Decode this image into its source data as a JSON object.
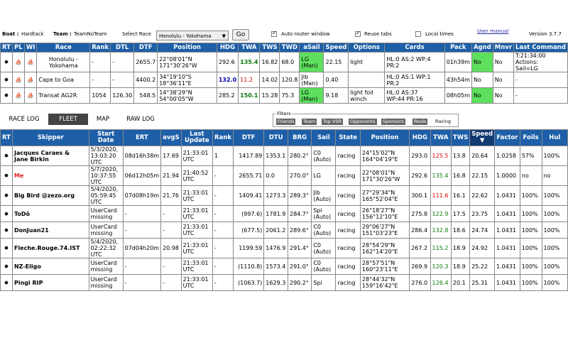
{
  "header": {
    "boat_label": "Boat :",
    "boat": "Hardtack",
    "team_label": "Team :",
    "team": "TeamNoTeam",
    "select_race_label": "Select Race",
    "selected_race": "Honolulu - Yokohama",
    "go_label": "Go",
    "auto_router_label": "Auto router window",
    "reuse_tabs_label": "Reuse tabs",
    "local_times_label": "Local times",
    "user_manual_label": "User manual",
    "version": "Version 3.7.7"
  },
  "race_table": {
    "headers": [
      "RT",
      "PL",
      "WI",
      "Race",
      "Rank",
      "DTL",
      "DTF",
      "Position",
      "HDG",
      "TWA",
      "TWS",
      "TWD",
      "aSail",
      "Speed",
      "Options",
      "Cards",
      "Pack",
      "Agnd",
      "Mnvr",
      "Last Command"
    ],
    "rows": [
      {
        "race_l1": "Honolulu -",
        "race_l2": "Yokohama",
        "rank": "-",
        "dtl": "-",
        "dtf": "2655.7",
        "pos1": "22°08'01\"N",
        "pos2": "171°30'26\"W",
        "hdg": "292.6",
        "twa": "135.4",
        "tws": "16.82",
        "twd": "68.0",
        "sail1": "LG",
        "sail2": "(Man)",
        "speed": "22.15",
        "options": "light",
        "cards1": "HL:0 AS:2 WP:4",
        "cards2": "PR:2",
        "pack": "01h39m",
        "agnd": "No",
        "mnvr": "No",
        "cmd1": "T:21:34:00",
        "cmd2": "Actions:",
        "cmd3": "Sail=LG"
      },
      {
        "race_l1": "Cape to Goa",
        "race_l2": "",
        "rank": "-",
        "dtl": "-",
        "dtf": "4400.2",
        "pos1": "34°19'10\"S",
        "pos2": "18°36'11\"E",
        "hdg": "132.0",
        "twa": "11.2",
        "tws": "14.02",
        "twd": "120.8",
        "sail1": "Jib",
        "sail2": "(Man)",
        "speed": "0.40",
        "options": "",
        "cards1": "HL:0 AS:1 WP:1",
        "cards2": "PR:2",
        "pack": "43h54m",
        "agnd": "No",
        "mnvr": "No",
        "cmd1": "-",
        "cmd2": "",
        "cmd3": ""
      },
      {
        "race_l1": "Transat AG2R",
        "race_l2": "",
        "rank": "1054",
        "dtl": "126.30",
        "dtf": "548.5",
        "pos1": "14°38'29\"N",
        "pos2": "54°00'05\"W",
        "hdg": "285.2",
        "twa": "150.1",
        "tws": "15.28",
        "twd": "75.3",
        "sail1": "LG",
        "sail2": "(Man)",
        "speed": "9.18",
        "options": "light foil",
        "options2": "winch",
        "cards1": "HL:0 AS:37",
        "cards2": "WP:44 PR:16",
        "pack": "08h05m",
        "agnd": "No",
        "mnvr": "No",
        "cmd1": "-",
        "cmd2": "",
        "cmd3": ""
      }
    ]
  },
  "tabs": [
    "RACE LOG",
    "FLEET",
    "MAP",
    "RAW LOG"
  ],
  "filters": {
    "label": "Filters",
    "items": [
      "Friends",
      "Team",
      "Top VSR",
      "Opponents",
      "Sponsors",
      "Reals",
      "Racing"
    ]
  },
  "fleet_table": {
    "headers": [
      "RT",
      "Skipper",
      "Start Date",
      "ERT",
      "avgS",
      "Last Update",
      "Rank",
      "DTF",
      "DTU",
      "BRG",
      "Sail",
      "State",
      "Position",
      "HDG",
      "TWA",
      "TWS",
      "Speed ▼",
      "Factor",
      "Foils",
      "Hul"
    ],
    "rows": [
      {
        "skipper": "Jacques Caraes &",
        "skipper2": "Jane Birkin",
        "sd1": "5/3/2020,",
        "sd2": "13:03:20",
        "sd3": "UTC",
        "ert": "08d16h38m",
        "avgs": "17.69",
        "lu1": "21:33:01",
        "lu2": "UTC",
        "rank": "1",
        "dtf": "1417.89",
        "dtu": "1353.1",
        "brg": "280.2°",
        "sail1": "C0",
        "sail2": "(Auto)",
        "state": "racing",
        "p1": "24°15'02\"N",
        "p2": "164°04'19\"E",
        "hdg": "293.0",
        "twa": "125.5",
        "twa_col": "red",
        "tws": "13.8",
        "speed": "20.64",
        "factor": "1.0258",
        "foils": "57%",
        "hul": "100%"
      },
      {
        "skipper": "Me",
        "skipper2": "",
        "sd1": "5/7/2020,",
        "sd2": "10:37:55",
        "sd3": "UTC",
        "ert": "06d12h05m",
        "avgs": "21.94",
        "lu1": "21:40:52",
        "lu2": "UTC",
        "rank": "-",
        "dtf": "2655.71",
        "dtu": "0.0",
        "brg": "270.0°",
        "sail1": "LG",
        "sail2": "",
        "state": "racing",
        "p1": "22°08'01\"N",
        "p2": "171°30'26\"W",
        "hdg": "292.6",
        "twa": "135.4",
        "twa_col": "green",
        "tws": "16.8",
        "speed": "22.15",
        "factor": "1.0000",
        "foils": "no",
        "hul": "no"
      },
      {
        "skipper": "Big Bird @zezo.org",
        "skipper2": "",
        "sd1": "5/4/2020,",
        "sd2": "05:59:45",
        "sd3": "UTC",
        "ert": "07d08h19m",
        "avgs": "21.76",
        "lu1": "21:33:01",
        "lu2": "UTC",
        "rank": "-",
        "dtf": "1409.41",
        "dtu": "1273.3",
        "brg": "289.3°",
        "sail1": "Jib",
        "sail2": "(Auto)",
        "state": "racing",
        "p1": "27°29'34\"N",
        "p2": "165°52'04\"E",
        "hdg": "300.1",
        "twa": "111.6",
        "twa_col": "red",
        "tws": "16.1",
        "speed": "22.62",
        "factor": "1.0431",
        "foils": "100%",
        "hul": "100%"
      },
      {
        "skipper": "ToDô",
        "skipper2": "",
        "sd1": "UserCard",
        "sd2": "missing",
        "sd3": "",
        "ert": "-",
        "avgs": "-",
        "lu1": "21:33:01",
        "lu2": "UTC",
        "rank": "-",
        "dtf": "(997.6)",
        "dtu": "1781.9",
        "brg": "284.7°",
        "sail1": "Spi",
        "sail2": "(Auto)",
        "state": "racing",
        "p1": "26°18'27\"N",
        "p2": "156°12'10\"E",
        "hdg": "275.8",
        "twa": "122.9",
        "twa_col": "green",
        "tws": "17.5",
        "speed": "23.75",
        "factor": "1.0431",
        "foils": "100%",
        "hul": "100%"
      },
      {
        "skipper": "DonJuan21",
        "skipper2": "",
        "sd1": "UserCard",
        "sd2": "missing",
        "sd3": "",
        "ert": "-",
        "avgs": "-",
        "lu1": "21:33:01",
        "lu2": "UTC",
        "rank": "-",
        "dtf": "(677.5)",
        "dtu": "2061.2",
        "brg": "289.6°",
        "sail1": "C0",
        "sail2": "(Auto)",
        "state": "racing",
        "p1": "29°06'27\"N",
        "p2": "151°03'23\"E",
        "hdg": "286.4",
        "twa": "132.8",
        "twa_col": "green",
        "tws": "18.6",
        "speed": "24.74",
        "factor": "1.0431",
        "foils": "100%",
        "hul": "100%"
      },
      {
        "skipper": "Fleche.Rouge.74.IST",
        "skipper2": "",
        "sd1": "5/4/2020,",
        "sd2": "02:22:32",
        "sd3": "UTC",
        "ert": "07d04h20m",
        "avgs": "20.98",
        "lu1": "21:33:01",
        "lu2": "UTC",
        "rank": "-",
        "dtf": "1199.59",
        "dtu": "1476.9",
        "brg": "291.4°",
        "sail1": "C0",
        "sail2": "(Auto)",
        "state": "racing",
        "p1": "28°54'29\"N",
        "p2": "162°14'20\"E",
        "hdg": "267.2",
        "twa": "115.2",
        "twa_col": "green",
        "tws": "18.9",
        "speed": "24.92",
        "factor": "1.0431",
        "foils": "100%",
        "hul": "100%"
      },
      {
        "skipper": "NZ-Eligo",
        "skipper2": "",
        "sd1": "UserCard",
        "sd2": "missing",
        "sd3": "",
        "ert": "-",
        "avgs": "-",
        "lu1": "21:33:01",
        "lu2": "UTC",
        "rank": "-",
        "dtf": "(1110.8)",
        "dtu": "1573.4",
        "brg": "291.0°",
        "sail1": "C0",
        "sail2": "(Auto)",
        "state": "racing",
        "p1": "28°57'51\"N",
        "p2": "160°23'11\"E",
        "hdg": "269.9",
        "twa": "120.3",
        "twa_col": "green",
        "tws": "18.9",
        "speed": "25.22",
        "factor": "1.0431",
        "foils": "100%",
        "hul": "100%"
      },
      {
        "skipper": "Pingi RIP",
        "skipper2": "",
        "sd1": "UserCard",
        "sd2": "missing",
        "sd3": "",
        "ert": "-",
        "avgs": "-",
        "lu1": "21:33:01",
        "lu2": "UTC",
        "rank": "-",
        "dtf": "(1063.7)",
        "dtu": "1629.3",
        "brg": "290.2°",
        "sail1": "Spi",
        "sail2": "",
        "state": "racing",
        "p1": "28°44'32\"N",
        "p2": "159°16'42\"E",
        "hdg": "276.0",
        "twa": "126.4",
        "twa_col": "green",
        "tws": "20.1",
        "speed": "25.31",
        "factor": "1.0431",
        "foils": "100%",
        "hul": "100%"
      }
    ]
  }
}
